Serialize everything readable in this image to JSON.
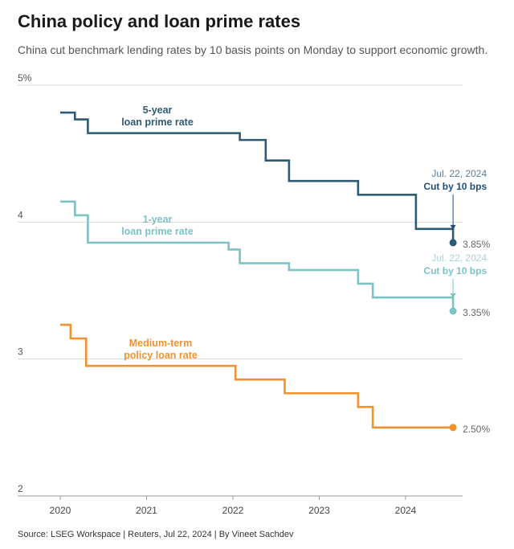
{
  "title": "China policy and loan prime rates",
  "subtitle": "China cut benchmark lending rates by 10 basis points on Monday to support economic growth.",
  "source": "Source: LSEG Workspace | Reuters, Jul 22, 2024 | By Vineet Sachdev",
  "chart_data": {
    "type": "line",
    "title": "China policy and loan prime rates",
    "subtitle": "China cut benchmark lending rates by 10 basis points on Monday to support economic growth.",
    "xlabel": "",
    "ylabel": "",
    "xlim": [
      2019.75,
      2024.75
    ],
    "ylim": [
      2,
      5
    ],
    "x_ticks": [
      2020,
      2021,
      2022,
      2023,
      2024
    ],
    "y_ticks": [
      {
        "value": 5,
        "label": "5%"
      },
      {
        "value": 4,
        "label": "4"
      },
      {
        "value": 3,
        "label": "3"
      },
      {
        "value": 2,
        "label": "2"
      }
    ],
    "grid": "horizontal",
    "step": true,
    "series": [
      {
        "name": "5-year loan prime rate",
        "label_lines": [
          "5-year",
          "loan prime rate"
        ],
        "color": "#2e5a73",
        "end_label": "3.85%",
        "points": [
          [
            2020.0,
            4.8
          ],
          [
            2020.17,
            4.75
          ],
          [
            2020.32,
            4.65
          ],
          [
            2022.08,
            4.6
          ],
          [
            2022.38,
            4.45
          ],
          [
            2022.65,
            4.3
          ],
          [
            2023.45,
            4.2
          ],
          [
            2024.12,
            3.95
          ],
          [
            2024.55,
            3.85
          ]
        ]
      },
      {
        "name": "1-year loan prime rate",
        "label_lines": [
          "1-year",
          "loan prime rate"
        ],
        "color": "#7cc3c6",
        "end_label": "3.35%",
        "points": [
          [
            2020.0,
            4.15
          ],
          [
            2020.17,
            4.05
          ],
          [
            2020.32,
            3.85
          ],
          [
            2021.95,
            3.8
          ],
          [
            2022.08,
            3.7
          ],
          [
            2022.65,
            3.65
          ],
          [
            2023.45,
            3.55
          ],
          [
            2023.62,
            3.45
          ],
          [
            2024.55,
            3.35
          ]
        ]
      },
      {
        "name": "Medium-term policy loan rate",
        "label_lines": [
          "Medium-term",
          "policy loan rate"
        ],
        "color": "#f0922e",
        "end_label": "2.50%",
        "points": [
          [
            2020.0,
            3.25
          ],
          [
            2020.12,
            3.15
          ],
          [
            2020.3,
            2.95
          ],
          [
            2022.03,
            2.85
          ],
          [
            2022.6,
            2.75
          ],
          [
            2023.45,
            2.65
          ],
          [
            2023.62,
            2.5
          ],
          [
            2024.55,
            2.5
          ]
        ]
      }
    ],
    "annotations": [
      {
        "series": 0,
        "date": "Jul. 22, 2024",
        "text": "Cut by 10 bps",
        "date_color": "#5b7f99",
        "text_color": "#1f4e79",
        "arrow_color": "#1f4e79"
      },
      {
        "series": 1,
        "date": "Jul. 22, 2024",
        "text": "Cut by 10 bps",
        "date_color": "#a9d3d6",
        "text_color": "#7cc3c6",
        "arrow_color": "#7cc3c6"
      }
    ]
  }
}
